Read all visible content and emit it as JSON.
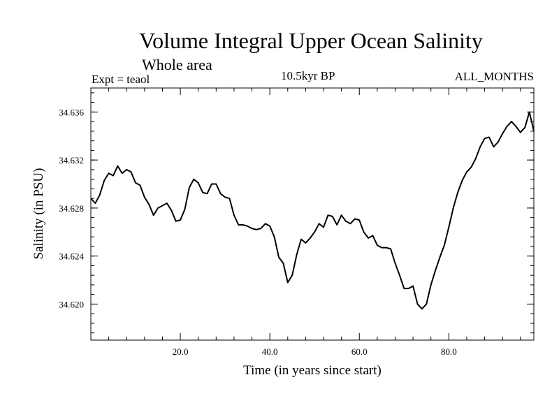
{
  "header": {
    "title": "Volume Integral Upper Ocean Salinity",
    "subtitle": "Whole area",
    "expt": "Expt = teaol",
    "period": "10.5kyr BP",
    "months": "ALL_MONTHS"
  },
  "chart_data": {
    "type": "line",
    "title": "Volume Integral Upper Ocean Salinity",
    "subtitle": "Whole area",
    "xlabel": "Time (in years since start)",
    "ylabel": "Salinity (in PSU)",
    "xlim": [
      0,
      99
    ],
    "ylim": [
      34.617,
      34.638
    ],
    "x_ticks": [
      20,
      40,
      60,
      80
    ],
    "x_tick_labels": [
      "20.0",
      "40.0",
      "60.0",
      "80.0"
    ],
    "y_ticks": [
      34.62,
      34.624,
      34.628,
      34.632,
      34.636
    ],
    "y_tick_labels": [
      "34.620",
      "34.624",
      "34.628",
      "34.632",
      "34.636"
    ],
    "series": [
      {
        "name": "Salinity",
        "x": [
          0,
          1,
          2,
          3,
          4,
          5,
          6,
          7,
          8,
          9,
          10,
          11,
          12,
          13,
          14,
          15,
          16,
          17,
          18,
          19,
          20,
          21,
          22,
          23,
          24,
          25,
          26,
          27,
          28,
          29,
          30,
          31,
          32,
          33,
          34,
          35,
          36,
          37,
          38,
          39,
          40,
          41,
          42,
          43,
          44,
          45,
          46,
          47,
          48,
          49,
          50,
          51,
          52,
          53,
          54,
          55,
          56,
          57,
          58,
          59,
          60,
          61,
          62,
          63,
          64,
          65,
          66,
          67,
          68,
          69,
          70,
          71,
          72,
          73,
          74,
          75,
          76,
          77,
          78,
          79,
          80,
          81,
          82,
          83,
          84,
          85,
          86,
          87,
          88,
          89,
          90,
          91,
          92,
          93,
          94,
          95,
          96,
          97,
          98,
          99
        ],
        "values": [
          34.6288,
          34.6284,
          34.6291,
          34.6303,
          34.6309,
          34.6307,
          34.6315,
          34.6309,
          34.6312,
          34.631,
          34.6301,
          34.6299,
          34.6289,
          34.6283,
          34.6274,
          34.628,
          34.6282,
          34.6284,
          34.6278,
          34.6269,
          34.627,
          34.6279,
          34.6297,
          34.6304,
          34.6301,
          34.6293,
          34.6292,
          34.63,
          34.63,
          34.6292,
          34.6289,
          34.6288,
          34.6274,
          34.6266,
          34.6266,
          34.6265,
          34.6263,
          34.6262,
          34.6263,
          34.6267,
          34.6265,
          34.6256,
          34.6239,
          34.6234,
          34.6218,
          34.6224,
          34.6241,
          34.6254,
          34.6251,
          34.6255,
          34.626,
          34.6267,
          34.6264,
          34.6274,
          34.6273,
          34.6266,
          34.6274,
          34.6269,
          34.6267,
          34.6271,
          34.627,
          34.626,
          34.6255,
          34.6257,
          34.6249,
          34.6247,
          34.6247,
          34.6246,
          34.6234,
          34.6224,
          34.6213,
          34.6213,
          34.6215,
          34.62,
          34.6196,
          34.62,
          34.6216,
          34.6228,
          34.6239,
          34.6249,
          34.6264,
          34.628,
          34.6293,
          34.6303,
          34.631,
          34.6314,
          34.6321,
          34.6331,
          34.6338,
          34.6339,
          34.6331,
          34.6335,
          34.6342,
          34.6348,
          34.6352,
          34.6348,
          34.6343,
          34.6347,
          34.636,
          34.6344
        ]
      }
    ]
  }
}
